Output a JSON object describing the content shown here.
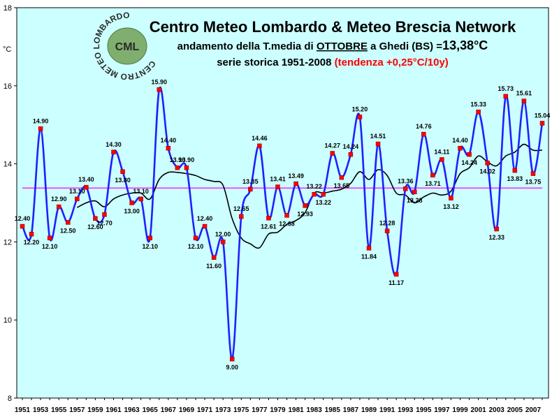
{
  "title": "Centro Meteo Lombardo & Meteo Brescia Network",
  "subtitle_prefix": "andamento della T.media di ",
  "subtitle_month": "OTTOBRE",
  "subtitle_suffix": " a Ghedi (BS) =",
  "subtitle_value": "13,38°C",
  "series_label": "serie storica 1951-2008 ",
  "trend_label": "(tendenza +0,25°C/10y)",
  "y_unit": "°C",
  "logo": {
    "ring_text": "CENTRO METEO LOMBARDO",
    "initials": "CML"
  },
  "colors": {
    "plot_bg": "#ccffff",
    "series_line": "#1f1fff",
    "marker": "#ff0000",
    "moving_avg": "#000000",
    "mean_line": "#ff00ff"
  },
  "chart_data": {
    "type": "line",
    "x": [
      1951,
      1952,
      1953,
      1954,
      1955,
      1956,
      1957,
      1958,
      1959,
      1960,
      1961,
      1962,
      1963,
      1964,
      1965,
      1966,
      1967,
      1968,
      1969,
      1970,
      1971,
      1972,
      1973,
      1974,
      1975,
      1976,
      1977,
      1978,
      1979,
      1980,
      1981,
      1982,
      1983,
      1984,
      1985,
      1986,
      1987,
      1988,
      1989,
      1990,
      1991,
      1992,
      1993,
      1994,
      1995,
      1996,
      1997,
      1998,
      1999,
      2000,
      2001,
      2002,
      2003,
      2004,
      2005,
      2006,
      2007,
      2008
    ],
    "x_tick_labels": [
      "1951",
      "1953",
      "1955",
      "1957",
      "1959",
      "1961",
      "1963",
      "1965",
      "1967",
      "1969",
      "1971",
      "1973",
      "1975",
      "1977",
      "1979",
      "1981",
      "1983",
      "1985",
      "1987",
      "1989",
      "1991",
      "1993",
      "1995",
      "1997",
      "1999",
      "2001",
      "2003",
      "2005",
      "2007"
    ],
    "ylim": [
      8,
      18
    ],
    "y_ticks": [
      8,
      10,
      12,
      14,
      16,
      18
    ],
    "series": [
      {
        "values": [
          12.4,
          12.2,
          14.9,
          12.1,
          12.9,
          12.5,
          13.1,
          13.4,
          12.6,
          12.7,
          14.3,
          13.8,
          13.0,
          13.1,
          12.1,
          15.9,
          14.4,
          13.9,
          13.9,
          12.1,
          12.4,
          11.6,
          12.0,
          9.0,
          12.65,
          13.35,
          14.46,
          12.61,
          13.41,
          12.68,
          13.49,
          12.93,
          13.22,
          13.22,
          14.27,
          13.65,
          14.24,
          15.2,
          11.84,
          14.51,
          12.28,
          11.17,
          13.36,
          13.28,
          14.76,
          13.71,
          14.11,
          13.12,
          14.4,
          14.24,
          15.33,
          14.02,
          12.33,
          15.73,
          13.83,
          15.61,
          13.75,
          15.04
        ],
        "labels": [
          "12.40",
          "12.20",
          "14.90",
          "12.10",
          "12.90",
          "12.50",
          "13.10",
          "13.40",
          "12.60",
          "12.70",
          "14.30",
          "13.80",
          "13.00",
          "13.10",
          "12.10",
          "15.90",
          "14.40",
          "13.90",
          "13.90",
          "12.10",
          "12.40",
          "11.60",
          "12.00",
          "9.00",
          "12.65",
          "13.35",
          "14.46",
          "12.61",
          "13.41",
          "12.68",
          "13.49",
          "12.93",
          "13.22",
          "13.22",
          "14.27",
          "13.65",
          "14.24",
          "15.20",
          "11.84",
          "14.51",
          "12.28",
          "11.17",
          "13.36",
          "13.28",
          "14.76",
          "13.71",
          "14.11",
          "13.12",
          "14.40",
          "14.24",
          "15.33",
          "14.02",
          "12.33",
          "15.73",
          "13.83",
          "15.61",
          "13.75",
          "15.04"
        ],
        "label_pos": [
          "a",
          "b",
          "a",
          "b",
          "a",
          "b",
          "a",
          "a",
          "b",
          "b",
          "a",
          "b",
          "b",
          "a",
          "b",
          "a",
          "a",
          "a",
          "a",
          "b",
          "a",
          "b",
          "a",
          "b",
          "a",
          "a",
          "a",
          "b",
          "a",
          "b",
          "a",
          "b",
          "a",
          "b",
          "a",
          "b",
          "a",
          "a",
          "b",
          "a",
          "a",
          "b",
          "a",
          "b",
          "a",
          "b",
          "a",
          "b",
          "a",
          "b",
          "a",
          "b",
          "b",
          "a",
          "b",
          "a",
          "b",
          "a"
        ]
      },
      {
        "values": [
          null,
          null,
          null,
          null,
          null,
          null,
          12.88,
          13.0,
          13.05,
          12.9,
          13.1,
          13.2,
          13.25,
          13.25,
          13.1,
          13.6,
          13.78,
          13.78,
          13.75,
          13.7,
          13.6,
          13.55,
          13.45,
          12.6,
          12.1,
          11.95,
          11.85,
          12.2,
          12.25,
          12.45,
          12.55,
          12.75,
          13.25,
          13.25,
          13.3,
          13.35,
          13.5,
          13.8,
          13.6,
          13.85,
          13.7,
          13.25,
          13.2,
          13.0,
          13.15,
          13.25,
          13.2,
          13.3,
          13.75,
          13.9,
          14.2,
          14.05,
          13.95,
          14.2,
          14.3,
          14.5,
          14.35,
          14.35
        ]
      },
      {
        "values_const": 13.38
      }
    ]
  }
}
